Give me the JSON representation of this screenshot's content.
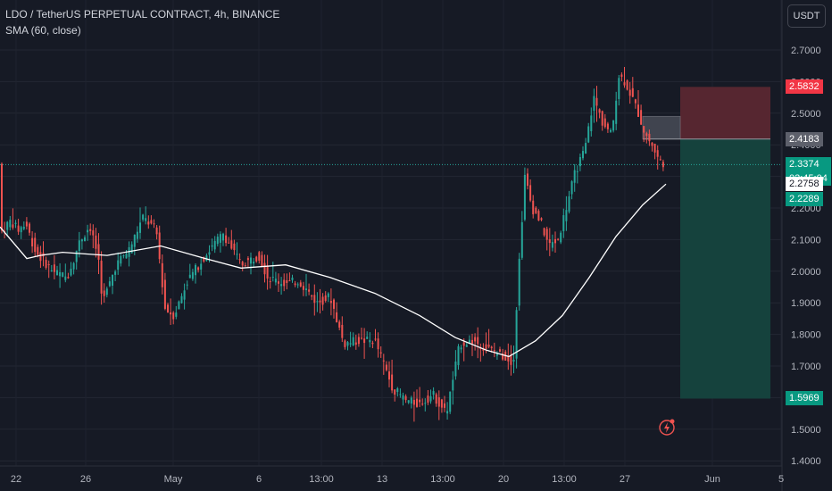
{
  "header": {
    "symbol_line": "LDO / TetherUS PERPETUAL CONTRACT, 4h, BINANCE",
    "indicator_line": "SMA (60, close)"
  },
  "currency_button": "USDT",
  "price_flags": {
    "stop": "2.5832",
    "entry": "2.4183",
    "last": "2.3374",
    "countdown": "02:45:04",
    "sma": "2.2758",
    "low_mark": "2.2289",
    "target": "1.5969"
  },
  "colors": {
    "up": "#26a69a",
    "down": "#ef5350",
    "sma": "#ffffff",
    "stop_zone": "#5a2730",
    "target_zone": "#15453e",
    "background": "#161a25"
  },
  "icons": {
    "bolt": "lightning-icon"
  },
  "chart_data": {
    "type": "candlestick",
    "y_ticks": [
      "2.7000",
      "2.6000",
      "2.5000",
      "2.4000",
      "2.3000",
      "2.2000",
      "2.1000",
      "2.0000",
      "1.9000",
      "1.8000",
      "1.7000",
      "1.6000",
      "1.5000",
      "1.4000"
    ],
    "x_ticks": [
      "22",
      "26",
      "May",
      "6",
      "13:00",
      "13",
      "13:00",
      "20",
      "13:00",
      "27",
      "Jun",
      "5"
    ],
    "ylim": [
      1.4,
      2.75
    ],
    "grid": true,
    "sma_period": 60,
    "sma_endpoints": [
      2.14,
      1.73,
      2.2758
    ],
    "key_prices": {
      "stop": 2.5832,
      "entry": 2.4183,
      "last": 2.3374,
      "sma_current": 2.2758,
      "low_mark": 2.2289,
      "target": 1.5969
    },
    "price_path": [
      [
        0,
        2.12
      ],
      [
        12,
        2.16
      ],
      [
        20,
        2.13
      ],
      [
        29,
        2.15
      ],
      [
        40,
        2.06
      ],
      [
        60,
        2.0
      ],
      [
        75,
        1.98
      ],
      [
        90,
        2.1
      ],
      [
        100,
        2.14
      ],
      [
        110,
        2.05
      ],
      [
        115,
        1.9
      ],
      [
        120,
        1.94
      ],
      [
        130,
        2.02
      ],
      [
        145,
        2.07
      ],
      [
        160,
        2.17
      ],
      [
        175,
        2.13
      ],
      [
        185,
        1.88
      ],
      [
        195,
        1.86
      ],
      [
        210,
        1.97
      ],
      [
        230,
        2.05
      ],
      [
        250,
        2.12
      ],
      [
        270,
        2.02
      ],
      [
        290,
        2.05
      ],
      [
        300,
        1.98
      ],
      [
        320,
        1.96
      ],
      [
        335,
        1.97
      ],
      [
        355,
        1.9
      ],
      [
        370,
        1.92
      ],
      [
        385,
        1.77
      ],
      [
        400,
        1.78
      ],
      [
        420,
        1.78
      ],
      [
        440,
        1.63
      ],
      [
        455,
        1.59
      ],
      [
        470,
        1.58
      ],
      [
        485,
        1.61
      ],
      [
        500,
        1.55
      ],
      [
        515,
        1.77
      ],
      [
        530,
        1.78
      ],
      [
        550,
        1.75
      ],
      [
        565,
        1.73
      ],
      [
        575,
        1.71
      ],
      [
        582,
        2.05
      ],
      [
        588,
        2.3
      ],
      [
        596,
        2.2
      ],
      [
        605,
        2.16
      ],
      [
        615,
        2.08
      ],
      [
        625,
        2.1
      ],
      [
        635,
        2.21
      ],
      [
        645,
        2.32
      ],
      [
        655,
        2.38
      ],
      [
        665,
        2.55
      ],
      [
        675,
        2.47
      ],
      [
        685,
        2.43
      ],
      [
        693,
        2.62
      ],
      [
        700,
        2.6
      ],
      [
        708,
        2.55
      ],
      [
        715,
        2.5
      ],
      [
        722,
        2.44
      ],
      [
        730,
        2.4
      ],
      [
        738,
        2.35
      ],
      [
        746,
        2.34
      ]
    ]
  }
}
